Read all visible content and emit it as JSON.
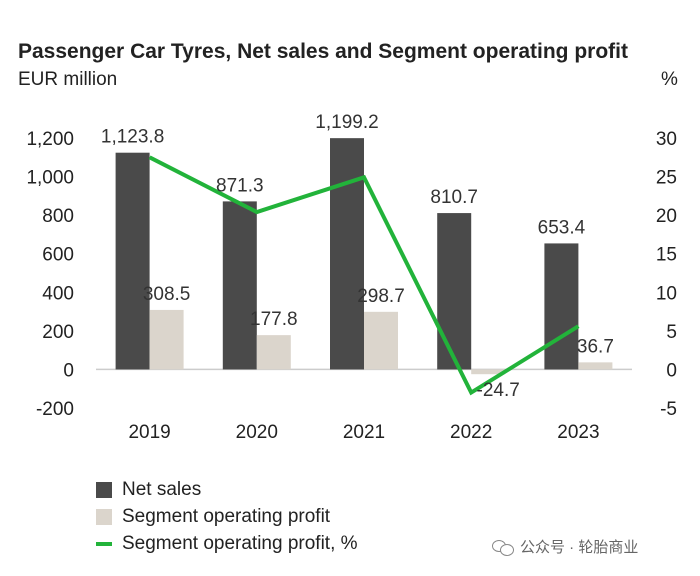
{
  "title": "Passenger Car Tyres, Net sales and Segment operating profit",
  "unit_left": "EUR million",
  "unit_right": "%",
  "watermark": "公众号 · 轮胎商业",
  "colors": {
    "net_sales": "#4a4a4a",
    "profit": "#dbd5cc",
    "profit_pct": "#22b33a",
    "axis": "#cccccc"
  },
  "chart_data": {
    "type": "bar",
    "title": "Passenger Car Tyres, Net sales and Segment operating profit",
    "categories": [
      "2019",
      "2020",
      "2021",
      "2022",
      "2023"
    ],
    "series": [
      {
        "name": "Net sales",
        "type": "bar",
        "axis": "left",
        "values": [
          1123.8,
          871.3,
          1199.2,
          810.7,
          653.4
        ],
        "labels": [
          "1,123.8",
          "871.3",
          "1,199.2",
          "810.7",
          "653.4"
        ]
      },
      {
        "name": "Segment operating profit",
        "type": "bar",
        "axis": "left",
        "values": [
          308.5,
          177.8,
          298.7,
          -24.7,
          36.7
        ],
        "labels": [
          "308.5",
          "177.8",
          "298.7",
          "-24.7",
          "36.7"
        ]
      },
      {
        "name": "Segment operating profit, %",
        "type": "line",
        "axis": "right",
        "values": [
          27.5,
          20.4,
          24.9,
          -3.0,
          5.6
        ]
      }
    ],
    "ylim_left": [
      -200,
      1200
    ],
    "yticks_left": [
      "-200",
      "0",
      "200",
      "400",
      "600",
      "800",
      "1,000",
      "1,200"
    ],
    "ylim_right": [
      -5,
      30
    ],
    "yticks_right": [
      "-5",
      "0",
      "5",
      "10",
      "15",
      "20",
      "25",
      "30"
    ],
    "xlabel": "",
    "ylabel": "EUR million",
    "ylabel_right": "%",
    "legend": [
      "Net sales",
      "Segment operating profit",
      "Segment operating profit, %"
    ]
  }
}
